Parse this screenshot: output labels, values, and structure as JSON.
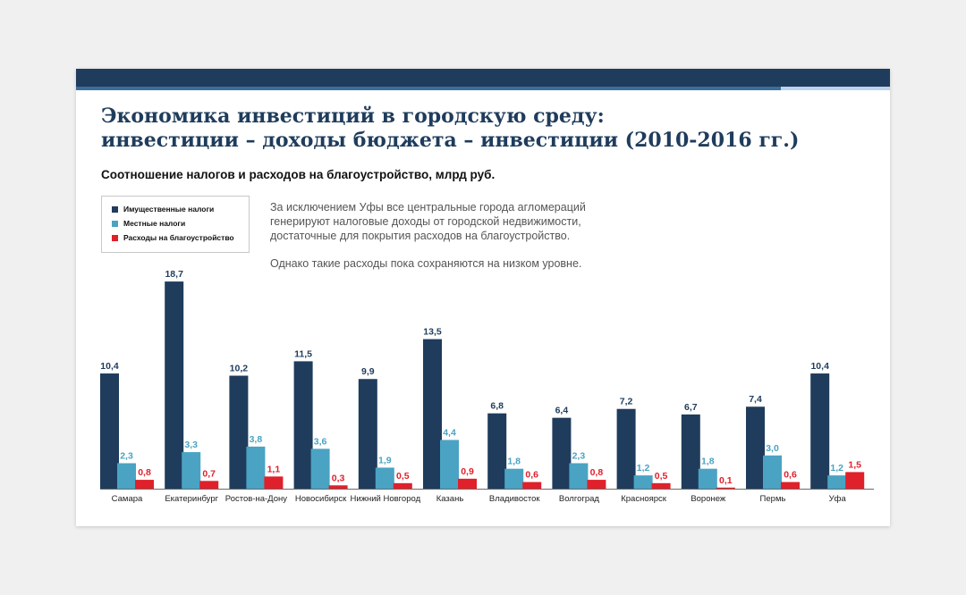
{
  "title": {
    "line1": "Экономика инвестиций в городскую среду:",
    "line2": "инвестиции – доходы бюджета – инвестиции (2010-2016 гг.)"
  },
  "subtitle": "Соотношение налогов и расходов на благоустройство, млрд руб.",
  "note": {
    "paragraph1": "За исключением Уфы все центральные города агломераций генерируют налоговые доходы от городской недвижимости, достаточные для покрытия расходов на благоустройство.",
    "paragraph2": "Однако такие расходы пока сохраняются на низком уровне."
  },
  "colors": {
    "header_bar": "#1f3c5c",
    "header_accent": "#3d6e9b",
    "header_light": "#b9d4ec"
  },
  "chart_data": {
    "type": "bar",
    "categories": [
      "Самара",
      "Екатеринбург",
      "Ростов-на-Дону",
      "Новосибирск",
      "Нижний Новгород",
      "Казань",
      "Владивосток",
      "Волгоград",
      "Красноярск",
      "Воронеж",
      "Пермь",
      "Уфа"
    ],
    "series": [
      {
        "name": "Имущественные налоги",
        "color": "#1f3c5c",
        "values": [
          10.4,
          18.7,
          10.2,
          11.5,
          9.9,
          13.5,
          6.8,
          6.4,
          7.2,
          6.7,
          7.4,
          10.4
        ],
        "labels": [
          "10,4",
          "18,7",
          "10,2",
          "11,5",
          "9,9",
          "13,5",
          "6,8",
          "6,4",
          "7,2",
          "6,7",
          "7,4",
          "10,4"
        ]
      },
      {
        "name": "Местные налоги",
        "color": "#4aa3c3",
        "values": [
          2.3,
          3.3,
          3.8,
          3.6,
          1.9,
          4.4,
          1.8,
          2.3,
          1.2,
          1.8,
          3.0,
          1.2
        ],
        "labels": [
          "2,3",
          "3,3",
          "3,8",
          "3,6",
          "1,9",
          "4,4",
          "1,8",
          "2,3",
          "1,2",
          "1,8",
          "3,0",
          "1,2"
        ]
      },
      {
        "name": "Расходы на благоустройство",
        "color": "#e0202a",
        "values": [
          0.8,
          0.7,
          1.1,
          0.3,
          0.5,
          0.9,
          0.6,
          0.8,
          0.5,
          0.1,
          0.6,
          1.5
        ],
        "labels": [
          "0,8",
          "0,7",
          "1,1",
          "0,3",
          "0,5",
          "0,9",
          "0,6",
          "0,8",
          "0,5",
          "0,1",
          "0,6",
          "1,5"
        ]
      }
    ],
    "legend_position": "top-left",
    "grid": false
  }
}
